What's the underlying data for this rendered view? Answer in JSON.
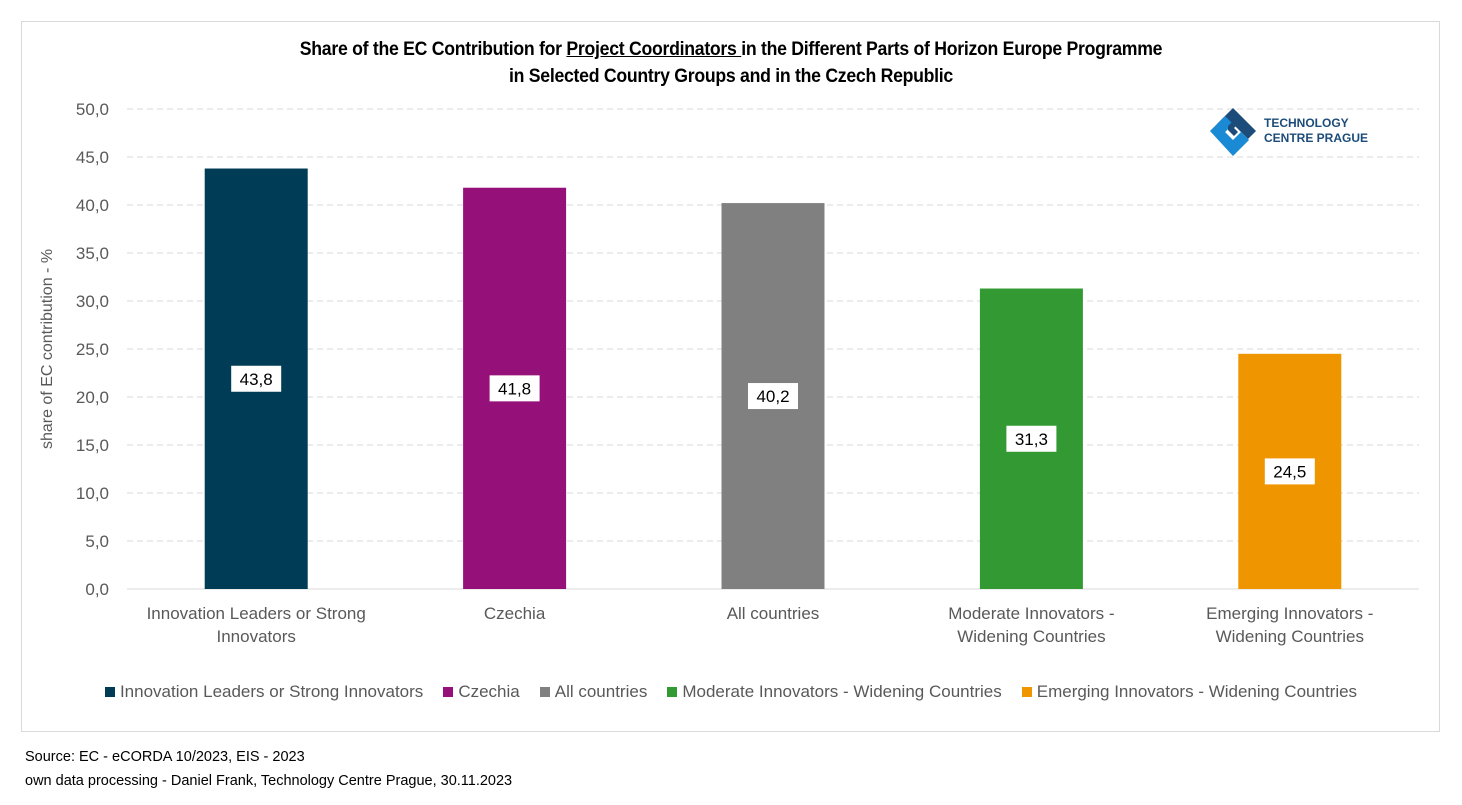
{
  "chart_data": {
    "type": "bar",
    "title_parts": [
      "Share of the EC Contribution for ",
      "Project Coordinators ",
      "in the Different Parts of Horizon Europe Programme"
    ],
    "title_line2": "in Selected Country Groups and in the Czech Republic",
    "ylabel": "share of EC contribution - %",
    "xlabel": "",
    "ylim": [
      0,
      50
    ],
    "yticks": [
      "0,0",
      "5,0",
      "10,0",
      "15,0",
      "20,0",
      "25,0",
      "30,0",
      "35,0",
      "40,0",
      "45,0",
      "50,0"
    ],
    "grid": true,
    "categories": [
      [
        "Innovation Leaders or Strong",
        "Innovators"
      ],
      [
        "Czechia"
      ],
      [
        "All countries"
      ],
      [
        "Moderate Innovators -",
        "Widening Countries"
      ],
      [
        "Emerging Innovators -",
        "Widening Countries"
      ]
    ],
    "values": [
      43.8,
      41.8,
      40.2,
      31.3,
      24.5
    ],
    "value_labels": [
      "43,8",
      "41,8",
      "40,2",
      "31,3",
      "24,5"
    ],
    "colors": [
      "#003c56",
      "#961079",
      "#808080",
      "#339933",
      "#ee9500"
    ],
    "legend": {
      "placement": "bottom",
      "entries": [
        "Innovation Leaders or Strong Innovators",
        "Czechia",
        "All countries",
        "Moderate Innovators - Widening Countries",
        "Emerging Innovators - Widening Countries"
      ]
    }
  },
  "logo": {
    "line1": "TECHNOLOGY",
    "line2": "CENTRE PRAGUE",
    "color_dark": "#1c4c7a",
    "color_light": "#1a8ad4"
  },
  "source": {
    "line1": "Source: EC - eCORDA 10/2023, EIS - 2023",
    "line2": "own data processing - Daniel Frank, Technology Centre Prague, 30.11.2023"
  }
}
